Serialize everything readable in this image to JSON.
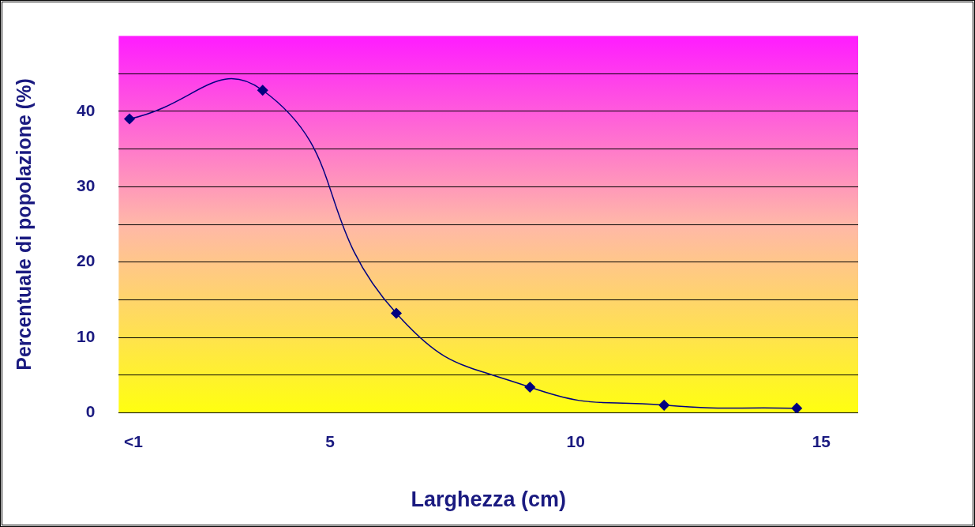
{
  "chart_data": {
    "type": "line",
    "xlabel": "Larghezza (cm)",
    "ylabel": "Percentuale di popolazione (%)",
    "x": [
      0.92,
      3.63,
      6.35,
      9.07,
      11.8,
      14.5
    ],
    "series": [
      {
        "color": "#000080",
        "values": [
          39,
          42.8,
          13.2,
          3.4,
          1.0,
          0.6
        ]
      }
    ],
    "xlim": [
      0.7,
      15.75
    ],
    "xticks": [
      {
        "value": 1,
        "label": "<1"
      },
      5,
      10,
      15
    ],
    "ylim": [
      0,
      50
    ],
    "yticks": [
      0,
      {
        "value": 5,
        "label": null
      },
      10,
      {
        "value": 15,
        "label": null
      },
      20,
      {
        "value": 25,
        "label": null
      },
      30,
      {
        "value": 35,
        "label": null
      },
      40,
      {
        "value": 45,
        "label": null
      }
    ],
    "grid": "y",
    "legend": false,
    "marker": "diamond",
    "line_style": "solid"
  }
}
